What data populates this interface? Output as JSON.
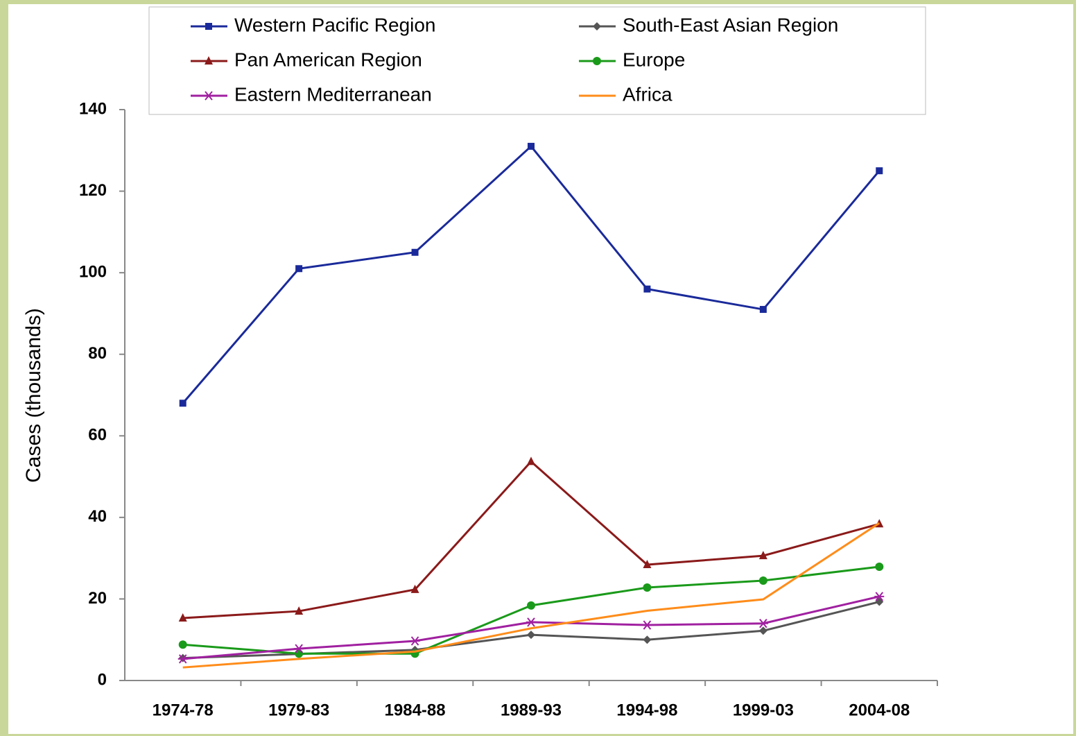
{
  "chart_data": {
    "type": "line",
    "y_label": "Cases (thousands)",
    "categories": [
      "1974-78",
      "1979-83",
      "1984-88",
      "1989-93",
      "1994-98",
      "1999-03",
      "2004-08"
    ],
    "series": [
      {
        "name": "Western Pacific Region",
        "color": "#1a2a9a",
        "marker": "square",
        "values": [
          68,
          101,
          105,
          131,
          96,
          91,
          125
        ]
      },
      {
        "name": "South-East Asian Region",
        "color": "#555555",
        "marker": "diamond",
        "values": [
          5.5,
          6.5,
          7.5,
          11.2,
          10,
          12.2,
          19.3
        ]
      },
      {
        "name": "Pan American Region",
        "color": "#8b1a1a",
        "marker": "triangle",
        "values": [
          15.3,
          17,
          22.3,
          53.7,
          28.4,
          30.6,
          38.4
        ]
      },
      {
        "name": "Europe",
        "color": "#1a9a1a",
        "marker": "circle",
        "values": [
          8.8,
          6.6,
          6.6,
          18.4,
          22.8,
          24.5,
          27.9
        ]
      },
      {
        "name": "Eastern Mediterranean",
        "color": "#a020a0",
        "marker": "asterisk",
        "values": [
          5.3,
          7.8,
          9.7,
          14.3,
          13.6,
          14,
          20.6
        ]
      },
      {
        "name": "Africa",
        "color": "#ff8c1a",
        "marker": "none",
        "values": [
          3.2,
          5.3,
          7.1,
          12.8,
          17.1,
          19.9,
          38.6
        ]
      }
    ],
    "ylim": [
      0,
      140
    ],
    "yticks": [
      0,
      20,
      40,
      60,
      80,
      100,
      120,
      140
    ],
    "grid": false,
    "legend": "top"
  }
}
